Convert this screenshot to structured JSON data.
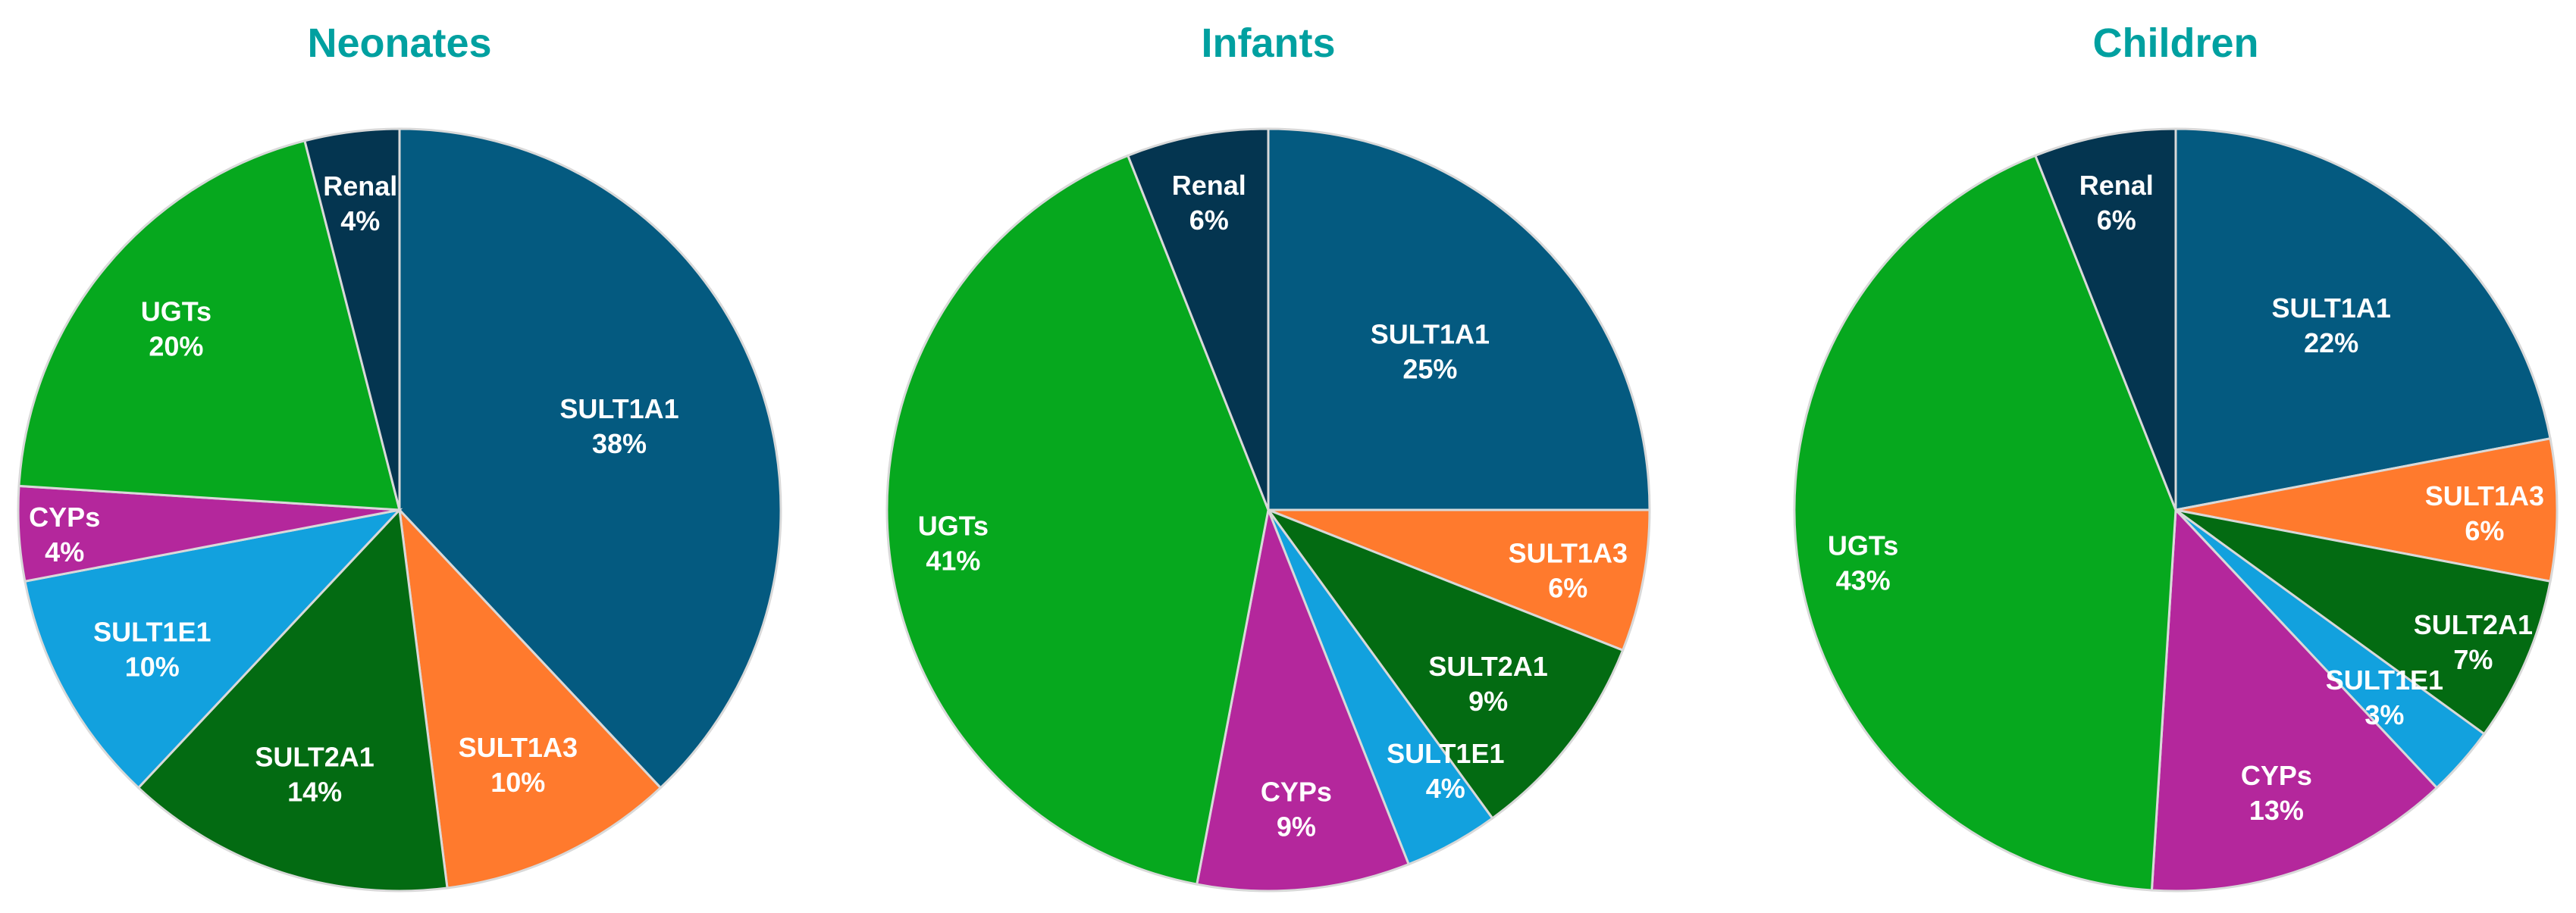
{
  "colors": {
    "title": "#00A0A0",
    "label": "#FFFFFF",
    "slice_border": "#D9D9D9",
    "SULT1A1": "#045A80",
    "SULT1A3": "#FF7A2D",
    "SULT2A1": "#036B12",
    "SULT1E1": "#12A1DE",
    "CYPs": "#B4279C",
    "UGTs": "#06A81E",
    "Renal": "#043550"
  },
  "chart_data": [
    {
      "type": "pie",
      "title": "Neonates",
      "slices": [
        {
          "category": "SULT1A1",
          "value": 38,
          "label": "38%"
        },
        {
          "category": "SULT1A3",
          "value": 10,
          "label": "10%"
        },
        {
          "category": "SULT2A1",
          "value": 14,
          "label": "14%"
        },
        {
          "category": "SULT1E1",
          "value": 10,
          "label": "10%"
        },
        {
          "category": "CYPs",
          "value": 4,
          "label": "4%"
        },
        {
          "category": "UGTs",
          "value": 20,
          "label": "20%"
        },
        {
          "category": "Renal",
          "value": 4,
          "label": "4%"
        }
      ]
    },
    {
      "type": "pie",
      "title": "Infants",
      "slices": [
        {
          "category": "SULT1A1",
          "value": 25,
          "label": "25%"
        },
        {
          "category": "SULT1A3",
          "value": 6,
          "label": "6%"
        },
        {
          "category": "SULT2A1",
          "value": 9,
          "label": "9%"
        },
        {
          "category": "SULT1E1",
          "value": 4,
          "label": "4%"
        },
        {
          "category": "CYPs",
          "value": 9,
          "label": "9%"
        },
        {
          "category": "UGTs",
          "value": 41,
          "label": "41%"
        },
        {
          "category": "Renal",
          "value": 6,
          "label": "6%"
        }
      ]
    },
    {
      "type": "pie",
      "title": "Children",
      "slices": [
        {
          "category": "SULT1A1",
          "value": 22,
          "label": "22%"
        },
        {
          "category": "SULT1A3",
          "value": 6,
          "label": "6%"
        },
        {
          "category": "SULT2A1",
          "value": 7,
          "label": "7%"
        },
        {
          "category": "SULT1E1",
          "value": 3,
          "label": "3%"
        },
        {
          "category": "CYPs",
          "value": 13,
          "label": "13%"
        },
        {
          "category": "UGTs",
          "value": 43,
          "label": "43%"
        },
        {
          "category": "Renal",
          "value": 6,
          "label": "6%"
        }
      ]
    }
  ]
}
